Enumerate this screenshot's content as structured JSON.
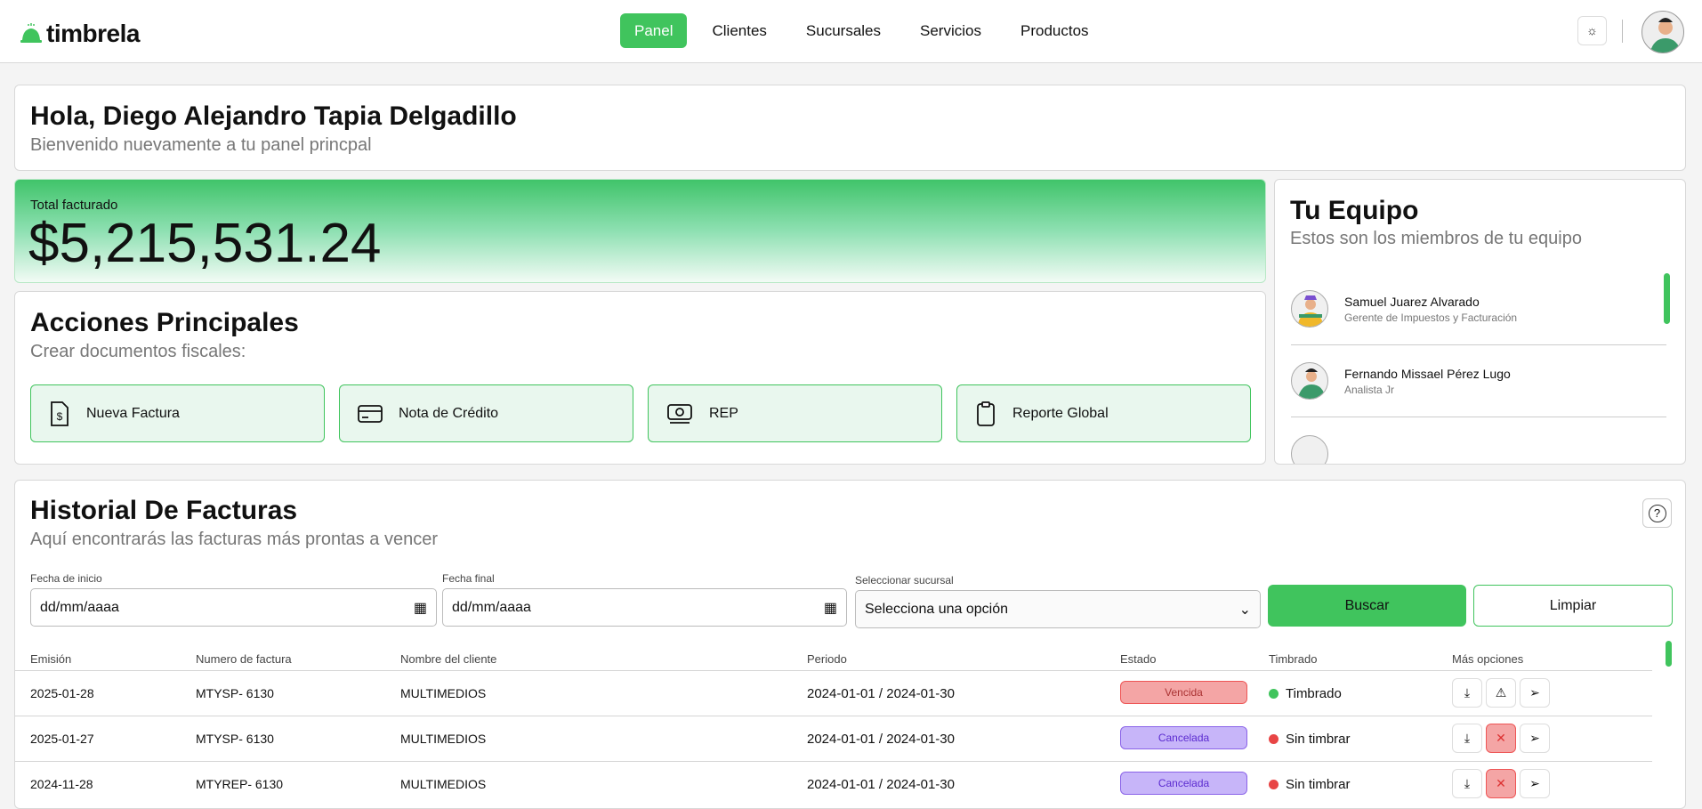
{
  "brand": {
    "name": "timbrela",
    "color": "#40c45d"
  },
  "nav": [
    {
      "label": "Panel",
      "active": true
    },
    {
      "label": "Clientes"
    },
    {
      "label": "Sucursales"
    },
    {
      "label": "Servicios"
    },
    {
      "label": "Productos"
    }
  ],
  "header": {
    "theme_icon": "sun-icon"
  },
  "welcome": {
    "title": "Hola, Diego Alejandro Tapia Delgadillo",
    "subtitle": "Bienvenido nuevamente a tu panel princpal"
  },
  "total": {
    "label": "Total facturado",
    "value": "$5,215,531.24"
  },
  "actions": {
    "title": "Acciones Principales",
    "subtitle": "Crear documentos fiscales:",
    "items": [
      {
        "label": "Nueva Factura",
        "icon": "invoice-dollar-icon"
      },
      {
        "label": "Nota de Crédito",
        "icon": "credit-card-icon"
      },
      {
        "label": "REP",
        "icon": "money-icon"
      },
      {
        "label": "Reporte Global",
        "icon": "clipboard-icon"
      }
    ]
  },
  "team": {
    "title": "Tu Equipo",
    "subtitle": "Estos son los miembros de tu equipo",
    "members": [
      {
        "name": "Samuel Juarez Alvarado",
        "role": "Gerente de Impuestos y Facturación"
      },
      {
        "name": "Fernando Missael Pérez Lugo",
        "role": "Analista Jr"
      }
    ]
  },
  "history": {
    "title": "Historial De Facturas",
    "subtitle": "Aquí encontrarás las facturas más prontas a vencer",
    "filters": {
      "start_label": "Fecha de inicio",
      "start_value": "dd/mm/aaaa",
      "end_label": "Fecha final",
      "end_value": "dd/mm/aaaa",
      "branch_label": "Seleccionar sucursal",
      "branch_value": "Selecciona una opción",
      "search": "Buscar",
      "clear": "Limpiar"
    },
    "columns": [
      "Emisión",
      "Numero de factura",
      "Nombre del cliente",
      "Periodo",
      "Estado",
      "Timbrado",
      "Más opciones"
    ],
    "rows": [
      {
        "emision": "2025-01-28",
        "numero": "MTYSP- 6130",
        "cliente": "MULTIMEDIOS",
        "periodo": "2024-01-01 / 2024-01-30",
        "estado": "Vencida",
        "timbrado": "Timbrado"
      },
      {
        "emision": "2025-01-27",
        "numero": "MTYSP- 6130",
        "cliente": "MULTIMEDIOS",
        "periodo": "2024-01-01 / 2024-01-30",
        "estado": "Cancelada",
        "timbrado": "Sin timbrar"
      },
      {
        "emision": "2024-11-28",
        "numero": "MTYREP- 6130",
        "cliente": "MULTIMEDIOS",
        "periodo": "2024-01-01 / 2024-01-30",
        "estado": "Cancelada",
        "timbrado": "Sin timbrar"
      }
    ]
  },
  "colors": {
    "accent": "#40c45d",
    "vencida": "#f4a5a5",
    "cancelada": "#c7b5f9",
    "timbrado": "#40c45d",
    "sin_timbrar": "#e84545"
  }
}
